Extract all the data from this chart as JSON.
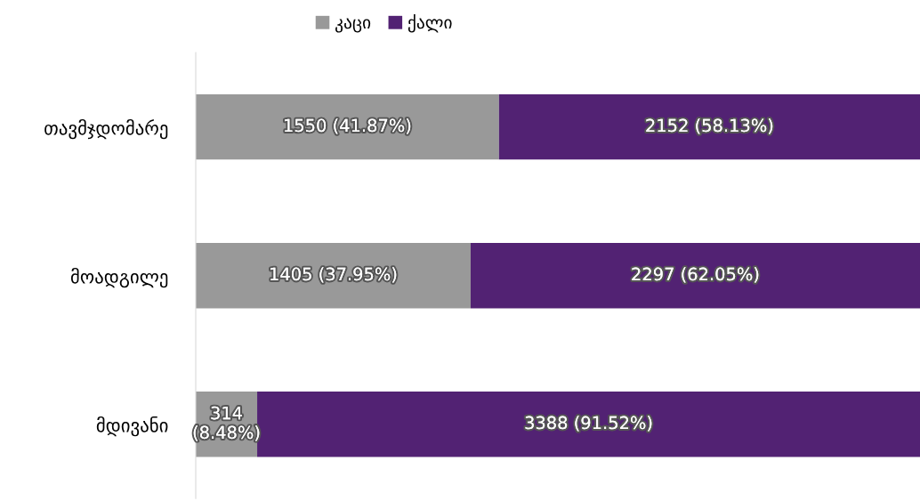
{
  "chart_data": {
    "type": "bar",
    "orientation": "horizontal",
    "stacked": true,
    "legend": "top",
    "categories": [
      "თავმჯდომარე",
      "მოადგილე",
      "მდივანი"
    ],
    "series": [
      {
        "name": "კაცი",
        "color": "#999999",
        "values": [
          1550,
          1405,
          314
        ],
        "value_labels": [
          "1550 (41.87%)",
          "1405 (37.95%)",
          "314\n(8.48%)"
        ]
      },
      {
        "name": "ქალი",
        "color": "#522273",
        "values": [
          2152,
          2297,
          3388
        ],
        "value_labels": [
          "2152 (58.13%)",
          "2297 (62.05%)",
          "3388 (91.52%)"
        ]
      }
    ]
  }
}
